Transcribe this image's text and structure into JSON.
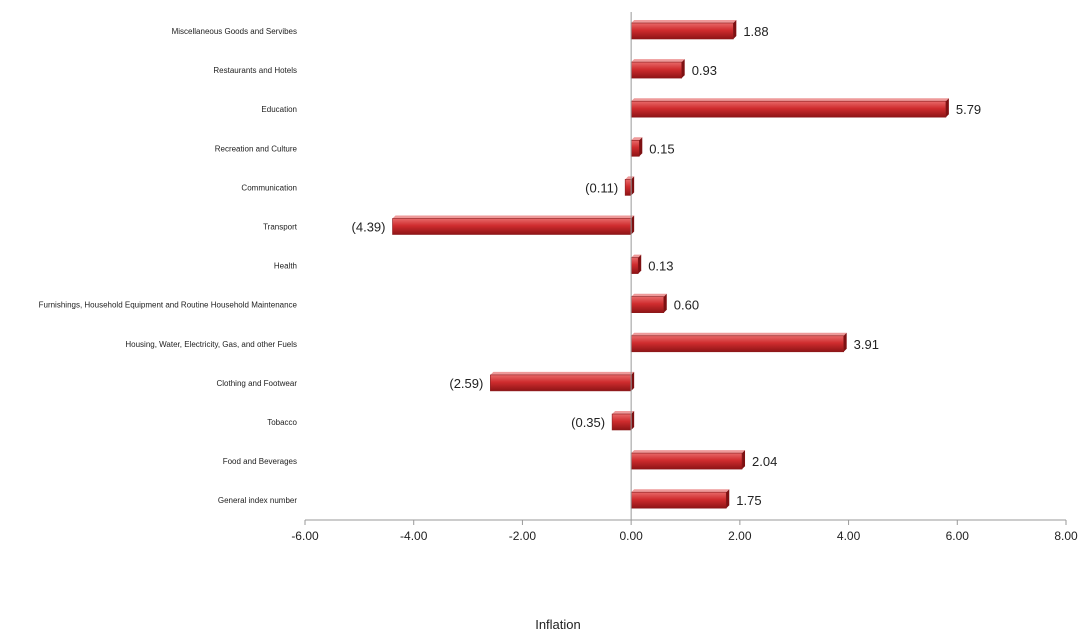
{
  "chart_data": {
    "type": "bar",
    "orientation": "horizontal",
    "categories": [
      "Miscellaneous Goods and Servibes",
      "Restaurants and Hotels",
      "Education",
      "Recreation and Culture",
      "Communication",
      "Transport",
      "Health",
      "Furnishings, Household Equipment and Routine Household Maintenance",
      "Housing, Water, Electricity, Gas, and other Fuels",
      "Clothing and Footwear",
      "Tobacco",
      "Food and Beverages",
      "General index number"
    ],
    "values": [
      1.88,
      0.93,
      5.79,
      0.15,
      -0.11,
      -4.39,
      0.13,
      0.6,
      3.91,
      -2.59,
      -0.35,
      2.04,
      1.75
    ],
    "data_labels": [
      "1.88",
      "0.93",
      "5.79",
      "0.15",
      "(0.11)",
      "(4.39)",
      "0.13",
      "0.60",
      "3.91",
      "(2.59)",
      "(0.35)",
      "2.04",
      "1.75"
    ],
    "xlim": [
      -6,
      8
    ],
    "x_ticks": [
      -6,
      -4,
      -2,
      0,
      2,
      4,
      6,
      8
    ],
    "x_tick_labels": [
      "-6.00",
      "-4.00",
      "-2.00",
      "0.00",
      "2.00",
      "4.00",
      "6.00",
      "8.00"
    ],
    "xlabel": "Inflation",
    "ylabel": "",
    "title": "",
    "grid": false,
    "legend": "none",
    "bar_color": "#c8282a"
  }
}
